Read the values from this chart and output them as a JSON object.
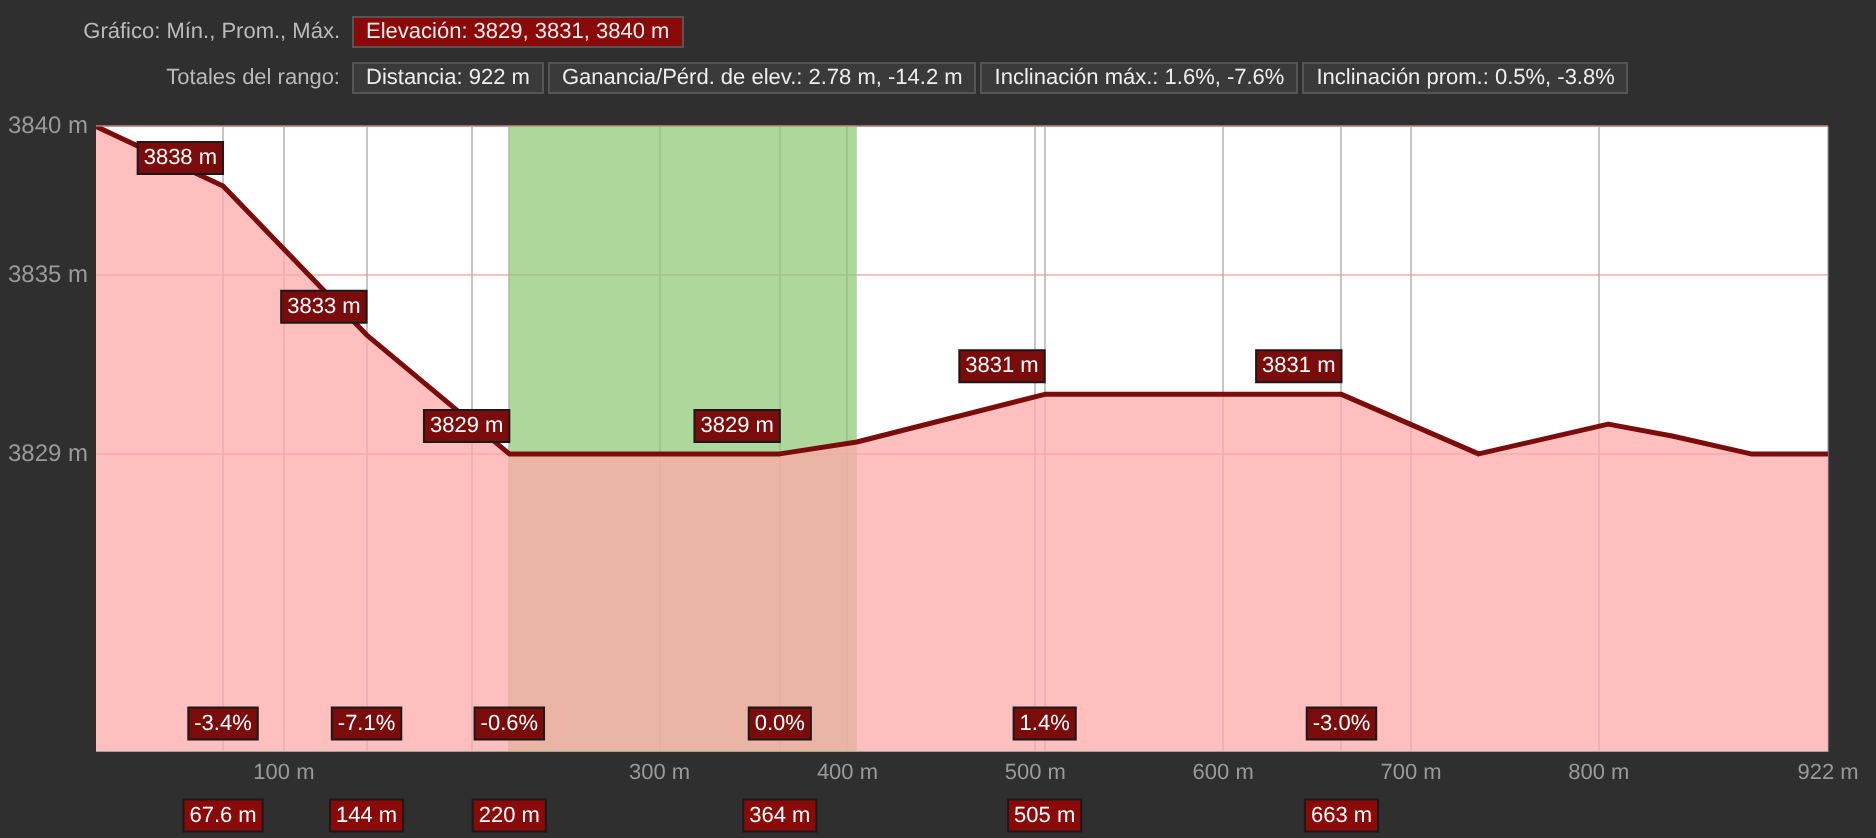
{
  "chart_data": {
    "type": "area",
    "title": "Gráfico: Mín., Prom., Máx.",
    "subtitle": "Totales del rango:",
    "x": [
      0,
      67.6,
      144,
      220,
      364,
      405,
      505,
      560,
      663,
      736,
      805,
      839,
      881,
      922
    ],
    "series": [
      {
        "color": "#7a0c0c",
        "values": [
          3840,
          3838,
          3833,
          3829,
          3829,
          3829.4,
          3831,
          3831,
          3831,
          3829,
          3830,
          3829.6,
          3829,
          3829
        ]
      }
    ],
    "xlim": [
      0,
      922
    ],
    "xticks": [
      {
        "value": 67.6,
        "label": null
      },
      {
        "value": 100,
        "label": "100 m"
      },
      {
        "value": 144,
        "label": null
      },
      {
        "value": 200,
        "label": null
      },
      {
        "value": 220,
        "label": null
      },
      {
        "value": 300,
        "label": "300 m"
      },
      {
        "value": 364,
        "label": null
      },
      {
        "value": 400,
        "label": "400 m"
      },
      {
        "value": 500,
        "label": "500 m"
      },
      {
        "value": 505,
        "label": null
      },
      {
        "value": 600,
        "label": "600 m"
      },
      {
        "value": 663,
        "label": null
      },
      {
        "value": 700,
        "label": "700 m"
      },
      {
        "value": 800,
        "label": "800 m"
      },
      {
        "value": 922,
        "label": "922 m"
      }
    ],
    "ylim": [
      3819,
      3840
    ],
    "yticks": [
      {
        "value": 3829,
        "label": "3829 m"
      },
      {
        "value": 3835,
        "label": "3835 m"
      },
      {
        "value": 3840,
        "label": "3840 m"
      }
    ],
    "bands": [
      {
        "axis": "x",
        "from": 220,
        "to": 405,
        "color": "#8cc870"
      }
    ],
    "annotations": [
      "Elevación: 3829, 3831, 3840 m",
      "Distancia: 922 m",
      "Ganancia/Pérd. de elev.: 2.78 m, -14.2 m",
      "Inclinación máx.: 1.6%, -7.6%",
      "Inclinación prom.: 0.5%, -3.8%",
      {
        "text": "3838 m",
        "x": 67.6,
        "y": 3838
      },
      {
        "text": "3833 m",
        "x": 144,
        "y": 3833
      },
      {
        "text": "3829 m",
        "x": 220,
        "y": 3829
      },
      {
        "text": "3829 m",
        "x": 364,
        "y": 3829
      },
      {
        "text": "3831 m",
        "x": 505,
        "y": 3831
      },
      {
        "text": "3831 m",
        "x": 663,
        "y": 3831
      },
      {
        "text": "67.6 m",
        "x": 67.6,
        "y": 3819
      },
      {
        "text": "144 m",
        "x": 144,
        "y": 3819
      },
      {
        "text": "220 m",
        "x": 220,
        "y": 3819
      },
      {
        "text": "364 m",
        "x": 364,
        "y": 3819
      },
      {
        "text": "505 m",
        "x": 505,
        "y": 3819
      },
      {
        "text": "663 m",
        "x": 663,
        "y": 3819
      },
      {
        "text": "-3.4%",
        "x": 67.6
      },
      {
        "text": "-7.1%",
        "x": 144
      },
      {
        "text": "-0.6%",
        "x": 220
      },
      {
        "text": "0.0%",
        "x": 364
      },
      {
        "text": "1.4%",
        "x": 505
      },
      {
        "text": "-3.0%",
        "x": 663
      }
    ],
    "grid": true,
    "legend": false,
    "marker": "none"
  }
}
